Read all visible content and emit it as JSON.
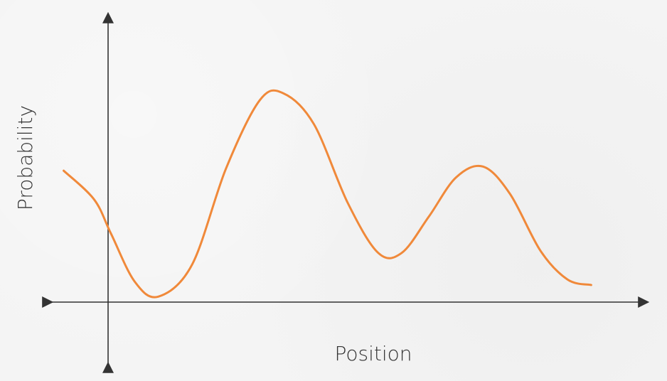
{
  "chart_data": {
    "type": "line",
    "title": "",
    "xlabel": "Position",
    "ylabel": "Probability",
    "xlim": [
      -0.8,
      7.8
    ],
    "ylim": [
      0,
      3.5
    ],
    "grid": false,
    "series": [
      {
        "color": "#f0893a",
        "points": [
          [
            -0.7,
            1.92
          ],
          [
            -0.25,
            1.5
          ],
          [
            0.0,
            1.0
          ],
          [
            0.35,
            0.3
          ],
          [
            0.7,
            0.08
          ],
          [
            1.2,
            0.55
          ],
          [
            1.7,
            1.95
          ],
          [
            2.2,
            2.95
          ],
          [
            2.55,
            3.05
          ],
          [
            3.0,
            2.6
          ],
          [
            3.5,
            1.45
          ],
          [
            3.95,
            0.72
          ],
          [
            4.3,
            0.72
          ],
          [
            4.7,
            1.25
          ],
          [
            5.1,
            1.82
          ],
          [
            5.5,
            1.98
          ],
          [
            5.9,
            1.58
          ],
          [
            6.35,
            0.75
          ],
          [
            6.75,
            0.33
          ],
          [
            7.1,
            0.25
          ]
        ]
      }
    ]
  }
}
